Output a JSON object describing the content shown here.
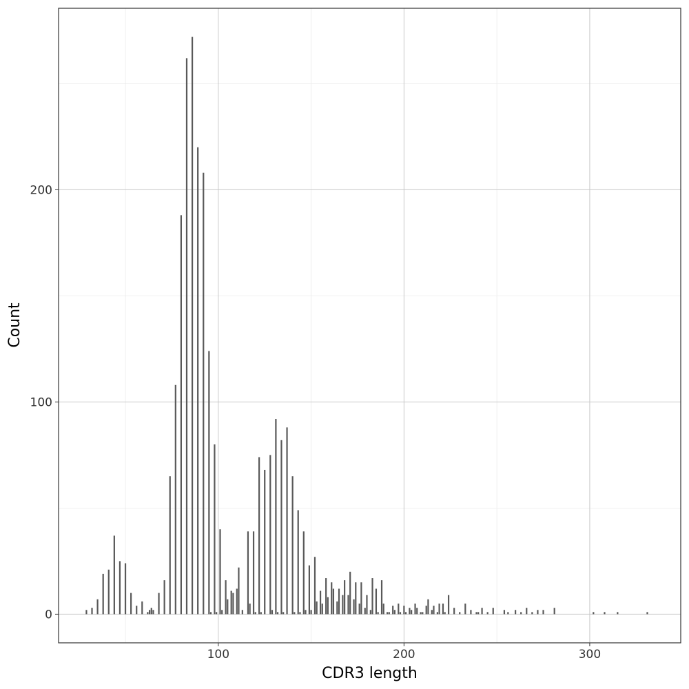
{
  "chart_data": {
    "type": "bar",
    "xlabel": "CDR3 length",
    "ylabel": "Count",
    "xlim": [
      14,
      349
    ],
    "ylim": [
      -13.5,
      285.5
    ],
    "x_ticks": [
      100,
      200,
      300
    ],
    "y_ticks": [
      0,
      100,
      200
    ],
    "grid": true,
    "bar_color": "#595959",
    "series": [
      {
        "x": [
          29,
          32,
          35,
          38,
          41,
          44,
          47,
          50,
          53,
          56,
          59,
          62,
          63,
          64,
          65,
          68,
          71,
          74,
          77,
          80,
          83,
          86,
          89,
          92,
          95,
          96,
          98,
          99,
          101,
          102,
          104,
          105,
          107,
          108,
          110,
          111,
          113,
          116,
          117,
          119,
          120,
          122,
          123,
          125,
          128,
          129,
          131,
          132,
          134,
          135,
          137,
          140,
          141,
          143,
          144,
          146,
          147,
          149,
          150,
          152,
          153,
          155,
          156,
          158,
          159,
          161,
          162,
          164,
          165,
          167,
          168,
          170,
          171,
          173,
          174,
          176,
          177,
          179,
          180,
          182,
          183,
          185,
          186,
          188,
          189,
          191,
          192,
          194,
          195,
          197,
          198,
          200,
          201,
          203,
          204,
          206,
          207,
          209,
          210,
          212,
          213,
          215,
          216,
          218,
          219,
          221,
          222,
          224,
          227,
          230,
          233,
          236,
          239,
          240,
          242,
          245,
          248,
          254,
          256,
          260,
          263,
          266,
          269,
          272,
          275,
          281,
          302,
          308,
          315,
          331
        ],
        "values": [
          2,
          3,
          7,
          19,
          21,
          37,
          25,
          24,
          10,
          4,
          6,
          1,
          2,
          3,
          2,
          10,
          16,
          65,
          108,
          188,
          262,
          272,
          220,
          208,
          124,
          1,
          80,
          1,
          40,
          2,
          16,
          7,
          11,
          10,
          12,
          22,
          2,
          39,
          5,
          39,
          1,
          74,
          1,
          68,
          75,
          2,
          92,
          1,
          82,
          1,
          88,
          65,
          1,
          49,
          1,
          39,
          2,
          23,
          2,
          27,
          6,
          11,
          5,
          17,
          8,
          15,
          12,
          6,
          12,
          9,
          16,
          9,
          20,
          7,
          15,
          5,
          15,
          3,
          9,
          2,
          17,
          12,
          1,
          16,
          5,
          1,
          1,
          4,
          2,
          5,
          1,
          4,
          1,
          3,
          2,
          5,
          3,
          1,
          1,
          4,
          7,
          2,
          4,
          1,
          5,
          5,
          1,
          9,
          3,
          1,
          5,
          2,
          1,
          1,
          3,
          1,
          3,
          2,
          1,
          2,
          1,
          3,
          1,
          2,
          2,
          3,
          1,
          1,
          1,
          1
        ]
      }
    ]
  }
}
